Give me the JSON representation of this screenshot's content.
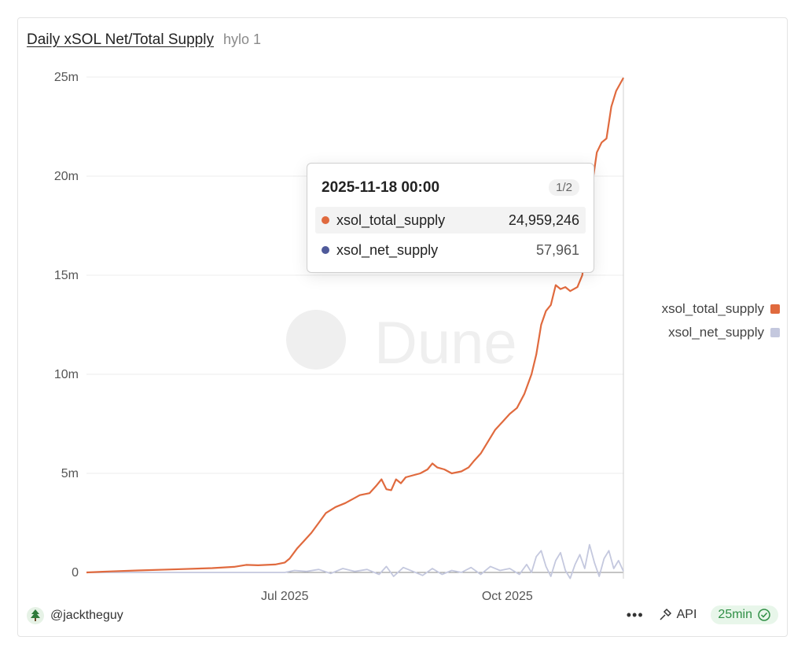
{
  "header": {
    "title": "Daily xSOL Net/Total Supply",
    "subtitle": "hylo 1"
  },
  "watermark": "Dune",
  "colors": {
    "total": "#e06a3e",
    "net": "#c4c8de",
    "net_dot": "#4f5a9a",
    "axis": "#d0d0d0",
    "grid": "#ececec"
  },
  "chart_data": {
    "type": "line",
    "title": "Daily xSOL Net/Total Supply",
    "xlabel": "",
    "ylabel": "",
    "x_range": [
      "2025-04-10",
      "2025-11-18"
    ],
    "ylim": [
      0,
      25000000
    ],
    "y_ticks": [
      {
        "value": 0,
        "label": "0"
      },
      {
        "value": 5000000,
        "label": "5m"
      },
      {
        "value": 10000000,
        "label": "10m"
      },
      {
        "value": 15000000,
        "label": "15m"
      },
      {
        "value": 20000000,
        "label": "20m"
      },
      {
        "value": 25000000,
        "label": "25m"
      }
    ],
    "x_ticks": [
      {
        "date": "2025-07-01",
        "label": "Jul 2025"
      },
      {
        "date": "2025-10-01",
        "label": "Oct 2025"
      }
    ],
    "grid": true,
    "legend_position": "right",
    "series": [
      {
        "name": "xsol_total_supply",
        "points": [
          [
            "2025-04-10",
            0
          ],
          [
            "2025-04-20",
            50000
          ],
          [
            "2025-05-01",
            100000
          ],
          [
            "2025-05-15",
            150000
          ],
          [
            "2025-06-01",
            220000
          ],
          [
            "2025-06-10",
            280000
          ],
          [
            "2025-06-15",
            380000
          ],
          [
            "2025-06-20",
            360000
          ],
          [
            "2025-06-27",
            400000
          ],
          [
            "2025-07-01",
            500000
          ],
          [
            "2025-07-03",
            700000
          ],
          [
            "2025-07-06",
            1200000
          ],
          [
            "2025-07-09",
            1600000
          ],
          [
            "2025-07-12",
            2000000
          ],
          [
            "2025-07-15",
            2500000
          ],
          [
            "2025-07-18",
            3000000
          ],
          [
            "2025-07-22",
            3300000
          ],
          [
            "2025-07-26",
            3500000
          ],
          [
            "2025-07-29",
            3700000
          ],
          [
            "2025-08-01",
            3900000
          ],
          [
            "2025-08-05",
            4000000
          ],
          [
            "2025-08-08",
            4400000
          ],
          [
            "2025-08-10",
            4700000
          ],
          [
            "2025-08-12",
            4200000
          ],
          [
            "2025-08-14",
            4150000
          ],
          [
            "2025-08-16",
            4700000
          ],
          [
            "2025-08-18",
            4500000
          ],
          [
            "2025-08-20",
            4800000
          ],
          [
            "2025-08-23",
            4900000
          ],
          [
            "2025-08-26",
            5000000
          ],
          [
            "2025-08-29",
            5200000
          ],
          [
            "2025-08-31",
            5500000
          ],
          [
            "2025-09-02",
            5300000
          ],
          [
            "2025-09-05",
            5200000
          ],
          [
            "2025-09-08",
            5000000
          ],
          [
            "2025-09-12",
            5100000
          ],
          [
            "2025-09-15",
            5300000
          ],
          [
            "2025-09-17",
            5600000
          ],
          [
            "2025-09-20",
            6000000
          ],
          [
            "2025-09-23",
            6600000
          ],
          [
            "2025-09-26",
            7200000
          ],
          [
            "2025-09-29",
            7600000
          ],
          [
            "2025-10-02",
            8000000
          ],
          [
            "2025-10-05",
            8300000
          ],
          [
            "2025-10-08",
            9000000
          ],
          [
            "2025-10-11",
            10000000
          ],
          [
            "2025-10-13",
            11000000
          ],
          [
            "2025-10-15",
            12500000
          ],
          [
            "2025-10-17",
            13200000
          ],
          [
            "2025-10-19",
            13500000
          ],
          [
            "2025-10-21",
            14500000
          ],
          [
            "2025-10-23",
            14300000
          ],
          [
            "2025-10-25",
            14400000
          ],
          [
            "2025-10-27",
            14200000
          ],
          [
            "2025-10-30",
            14400000
          ],
          [
            "2025-11-01",
            15000000
          ],
          [
            "2025-11-03",
            17000000
          ],
          [
            "2025-11-05",
            19500000
          ],
          [
            "2025-11-07",
            21200000
          ],
          [
            "2025-11-09",
            21700000
          ],
          [
            "2025-11-11",
            21900000
          ],
          [
            "2025-11-13",
            23500000
          ],
          [
            "2025-11-15",
            24300000
          ],
          [
            "2025-11-18",
            24959246
          ]
        ]
      },
      {
        "name": "xsol_net_supply",
        "points": [
          [
            "2025-04-10",
            0
          ],
          [
            "2025-07-01",
            0
          ],
          [
            "2025-07-05",
            100000
          ],
          [
            "2025-07-10",
            50000
          ],
          [
            "2025-07-15",
            150000
          ],
          [
            "2025-07-20",
            -50000
          ],
          [
            "2025-07-25",
            200000
          ],
          [
            "2025-07-30",
            50000
          ],
          [
            "2025-08-04",
            150000
          ],
          [
            "2025-08-09",
            -100000
          ],
          [
            "2025-08-12",
            300000
          ],
          [
            "2025-08-15",
            -200000
          ],
          [
            "2025-08-19",
            250000
          ],
          [
            "2025-08-23",
            50000
          ],
          [
            "2025-08-27",
            -150000
          ],
          [
            "2025-08-31",
            200000
          ],
          [
            "2025-09-04",
            -100000
          ],
          [
            "2025-09-08",
            100000
          ],
          [
            "2025-09-12",
            0
          ],
          [
            "2025-09-16",
            250000
          ],
          [
            "2025-09-20",
            -100000
          ],
          [
            "2025-09-24",
            300000
          ],
          [
            "2025-09-28",
            100000
          ],
          [
            "2025-10-02",
            200000
          ],
          [
            "2025-10-06",
            -100000
          ],
          [
            "2025-10-09",
            400000
          ],
          [
            "2025-10-11",
            0
          ],
          [
            "2025-10-13",
            800000
          ],
          [
            "2025-10-15",
            1100000
          ],
          [
            "2025-10-17",
            300000
          ],
          [
            "2025-10-19",
            -200000
          ],
          [
            "2025-10-21",
            600000
          ],
          [
            "2025-10-23",
            1000000
          ],
          [
            "2025-10-25",
            100000
          ],
          [
            "2025-10-27",
            -300000
          ],
          [
            "2025-10-29",
            400000
          ],
          [
            "2025-10-31",
            900000
          ],
          [
            "2025-11-02",
            200000
          ],
          [
            "2025-11-04",
            1400000
          ],
          [
            "2025-11-06",
            500000
          ],
          [
            "2025-11-08",
            -200000
          ],
          [
            "2025-11-10",
            700000
          ],
          [
            "2025-11-12",
            1100000
          ],
          [
            "2025-11-14",
            200000
          ],
          [
            "2025-11-16",
            600000
          ],
          [
            "2025-11-18",
            57961
          ]
        ]
      }
    ],
    "tooltip": {
      "date": "2025-11-18 00:00",
      "page": "1/2",
      "rows": [
        {
          "name": "xsol_total_supply",
          "value": "24,959,246"
        },
        {
          "name": "xsol_net_supply",
          "value": "57,961"
        }
      ]
    }
  },
  "legend": {
    "items": [
      "xsol_total_supply",
      "xsol_net_supply"
    ]
  },
  "footer": {
    "author": "@jacktheguy",
    "more": "•••",
    "api": "API",
    "refresh": "25min"
  }
}
